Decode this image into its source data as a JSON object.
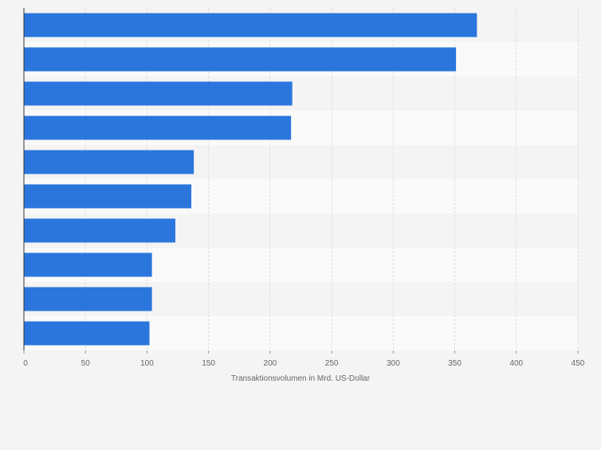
{
  "chart_data": {
    "type": "bar",
    "orientation": "horizontal",
    "categories": [
      "",
      "",
      "",
      "",
      "",
      "",
      "",
      "",
      "",
      ""
    ],
    "values": [
      368,
      351,
      218,
      217,
      138,
      136,
      123,
      104,
      104,
      102
    ],
    "title": "",
    "xlabel": "Transaktionsvolumen in Mrd. US-Dollar",
    "ylabel": "",
    "xlim": [
      0,
      450
    ],
    "xticks": [
      0,
      50,
      100,
      150,
      200,
      250,
      300,
      350,
      400,
      450
    ],
    "grid": "vertical",
    "legend": "none"
  },
  "colors": {
    "bar": "#2a76dd",
    "background": "#f4f4f4",
    "band_dark": "#f4f4f4",
    "band_light": "#fafafa",
    "grid": "#dedede",
    "axis": "#333333",
    "tick_text": "#666666"
  }
}
